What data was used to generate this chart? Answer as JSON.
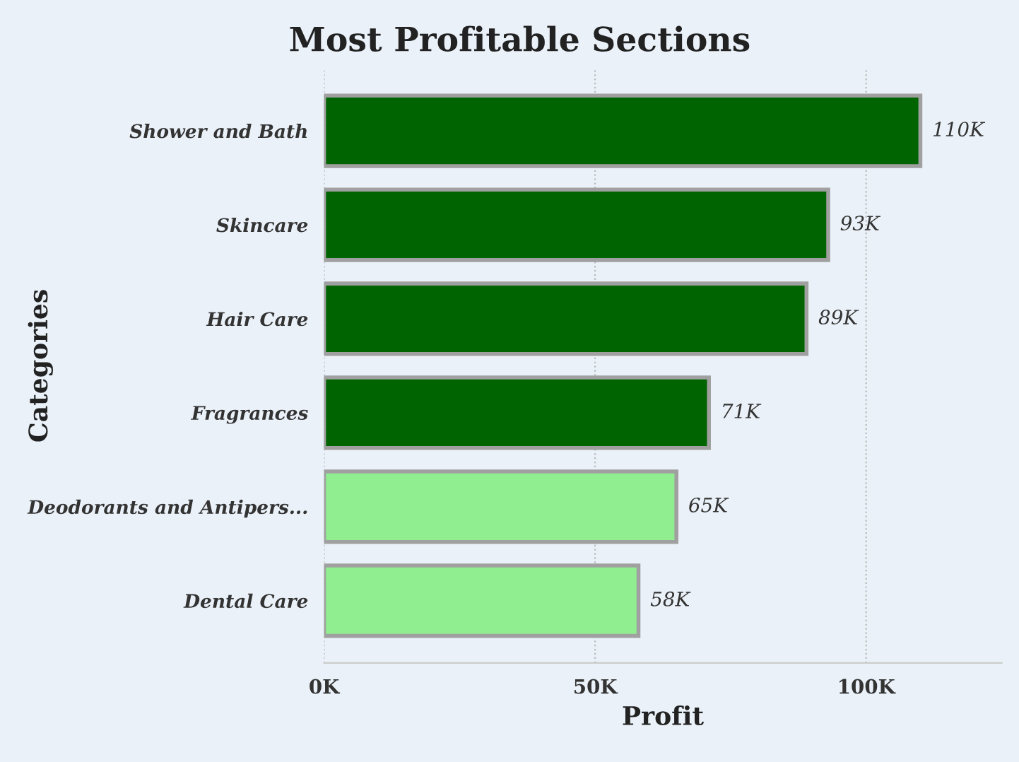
{
  "chart_data": {
    "type": "bar",
    "orientation": "horizontal",
    "title": "Most Profitable Sections",
    "xlabel": "Profit",
    "ylabel": "Categories",
    "categories": [
      "Shower and Bath",
      "Skincare",
      "Hair Care",
      "Fragrances",
      "Deodorants and Antipers...",
      "Dental Care"
    ],
    "values": [
      110000,
      93000,
      89000,
      71000,
      65000,
      58000
    ],
    "colors": [
      "#006400",
      "#006400",
      "#006400",
      "#006400",
      "#90ee90",
      "#90ee90"
    ],
    "value_labels": [
      "110K",
      "93K",
      "89K",
      "71K",
      "65K",
      "58K"
    ],
    "xlim": [
      0,
      125000
    ],
    "xticks": [
      {
        "value": 0,
        "label": "0K"
      },
      {
        "value": 50000,
        "label": "50K"
      },
      {
        "value": 100000,
        "label": "100K"
      }
    ],
    "grid": "x",
    "legend": false
  }
}
